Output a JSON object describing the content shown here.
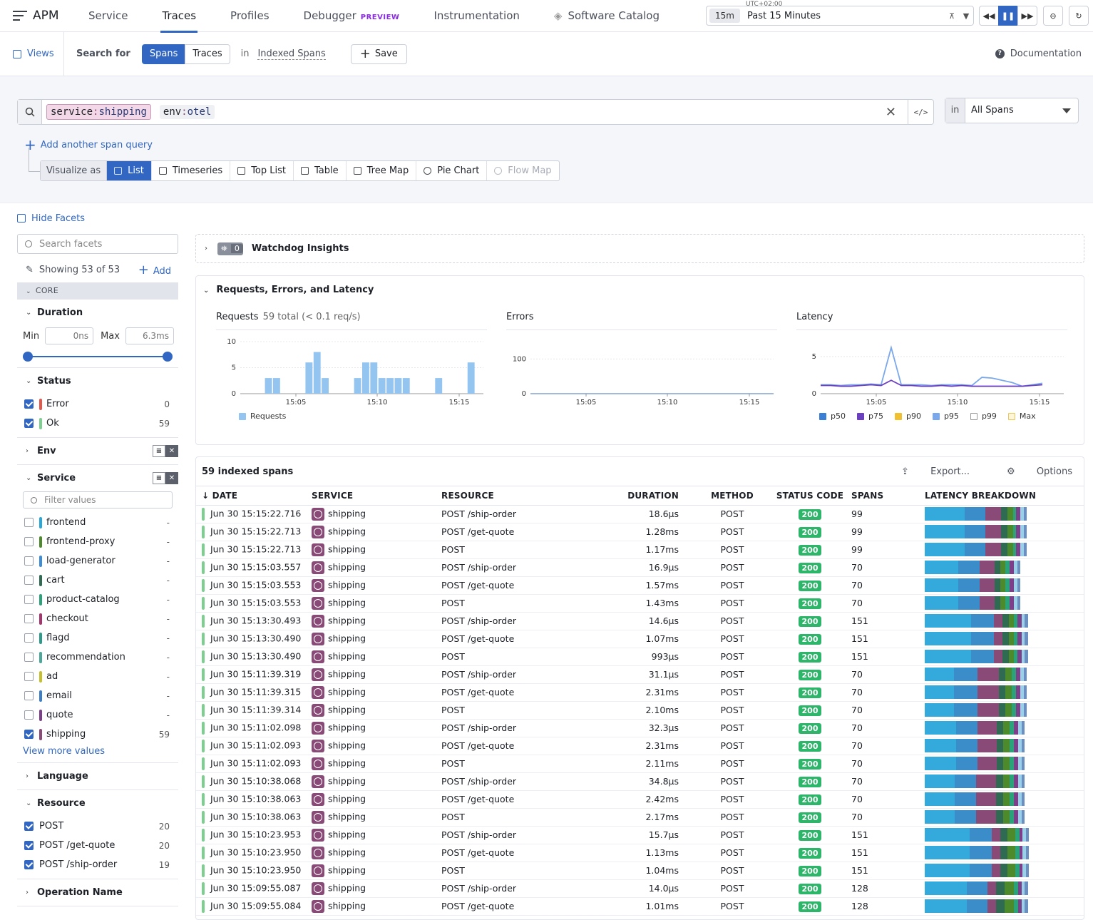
{
  "nav": {
    "brand": "APM",
    "tabs": [
      "Service",
      "Traces",
      "Profiles",
      "Debugger",
      "Instrumentation",
      "Software Catalog"
    ],
    "active_tab": "Traces",
    "debugger_badge": "PREVIEW",
    "time": {
      "tz": "UTC+02:00",
      "badge": "15m",
      "label": "Past 15 Minutes"
    }
  },
  "subbar": {
    "views": "Views",
    "search_for": "Search for",
    "spans": "Spans",
    "traces": "Traces",
    "in": "in",
    "indexed": "Indexed Spans",
    "save": "Save",
    "docs": "Documentation"
  },
  "query": {
    "pill1_key": "service",
    "pill1_val": "shipping",
    "pill2_key": "env",
    "pill2_val": "otel",
    "in": "in",
    "scope": "All Spans",
    "add_query": "Add another span query",
    "visualize_as": "Visualize as",
    "vis_options": [
      "List",
      "Timeseries",
      "Top List",
      "Table",
      "Tree Map",
      "Pie Chart",
      "Flow Map"
    ]
  },
  "facets": {
    "hide": "Hide Facets",
    "search_placeholder": "Search facets",
    "showing": "Showing 53 of 53",
    "add": "Add",
    "core": "CORE",
    "duration": {
      "title": "Duration",
      "min_label": "Min",
      "min": "0ns",
      "max_label": "Max",
      "max": "6.3ms"
    },
    "status": {
      "title": "Status",
      "items": [
        {
          "label": "Error",
          "count": "0",
          "color": "#e5574b"
        },
        {
          "label": "Ok",
          "count": "59",
          "color": "#7ccf8f"
        }
      ]
    },
    "env_title": "Env",
    "service": {
      "title": "Service",
      "filter_placeholder": "Filter values",
      "items": [
        {
          "label": "frontend",
          "count": "-",
          "color": "#26a8d8",
          "checked": false
        },
        {
          "label": "frontend-proxy",
          "count": "-",
          "color": "#4c8a2c",
          "checked": false
        },
        {
          "label": "load-generator",
          "count": "-",
          "color": "#3a8dd6",
          "checked": false
        },
        {
          "label": "cart",
          "count": "-",
          "color": "#2f6b52",
          "checked": false
        },
        {
          "label": "product-catalog",
          "count": "-",
          "color": "#2aa37a",
          "checked": false
        },
        {
          "label": "checkout",
          "count": "-",
          "color": "#a6356e",
          "checked": false
        },
        {
          "label": "flagd",
          "count": "-",
          "color": "#2b9c8a",
          "checked": false
        },
        {
          "label": "recommendation",
          "count": "-",
          "color": "#4aa89a",
          "checked": false
        },
        {
          "label": "ad",
          "count": "-",
          "color": "#c8c02a",
          "checked": false
        },
        {
          "label": "email",
          "count": "-",
          "color": "#3a7fc8",
          "checked": false
        },
        {
          "label": "quote",
          "count": "-",
          "color": "#7d3f8a",
          "checked": false
        },
        {
          "label": "shipping",
          "count": "59",
          "color": "#8a4a78",
          "checked": true
        }
      ],
      "view_more": "View more values"
    },
    "language_title": "Language",
    "resource": {
      "title": "Resource",
      "items": [
        {
          "label": "POST",
          "count": "20"
        },
        {
          "label": "POST /get-quote",
          "count": "20"
        },
        {
          "label": "POST /ship-order",
          "count": "19"
        }
      ]
    },
    "operation_title": "Operation Name"
  },
  "watchdog": {
    "count": "0",
    "title": "Watchdog Insights"
  },
  "rel": {
    "title": "Requests, Errors, and Latency",
    "requests": {
      "title": "Requests",
      "subtitle": "59 total (< 0.1 req/s)",
      "legend": "Requests",
      "color": "#94c4f0",
      "yticks": [
        "10",
        "5",
        "0"
      ],
      "xticks": [
        "15:05",
        "15:10",
        "15:15"
      ],
      "chart_data": {
        "type": "bar",
        "title": "Requests",
        "ylim": [
          0,
          10
        ],
        "values": [
          0,
          0,
          0,
          3,
          3,
          0,
          0,
          0,
          6,
          8,
          3,
          0,
          0,
          0,
          3,
          6,
          6,
          3,
          3,
          3,
          3,
          0,
          0,
          0,
          3,
          0,
          0,
          0,
          6,
          0
        ]
      }
    },
    "errors": {
      "title": "Errors",
      "yticks": [
        "100",
        "0"
      ],
      "xticks": [
        "15:05",
        "15:10",
        "15:15"
      ],
      "chart_data": {
        "type": "line",
        "title": "Errors",
        "ylim": [
          0,
          150
        ],
        "values": [
          0,
          0,
          0,
          0,
          0,
          0,
          0,
          0,
          0,
          0
        ]
      }
    },
    "latency": {
      "title": "Latency",
      "yticks": [
        "5",
        "0"
      ],
      "xticks": [
        "15:05",
        "15:10",
        "15:15"
      ],
      "legend": [
        {
          "name": "p50",
          "color": "#3a7fd6"
        },
        {
          "name": "p75",
          "color": "#6a3fc0"
        },
        {
          "name": "p90",
          "color": "#f0c030"
        },
        {
          "name": "p95",
          "color": "#7aa8ea"
        },
        {
          "name": "p99",
          "color": "#ffffff"
        },
        {
          "name": "Max",
          "color": "#fff6d8"
        }
      ],
      "chart_data": {
        "type": "line",
        "title": "Latency",
        "ylim": [
          0,
          7
        ],
        "series": [
          {
            "name": "p95",
            "values": [
              1.2,
              1.2,
              1.1,
              1.2,
              1.2,
              1.3,
              1.2,
              6.2,
              1.2,
              1.2,
              1.2,
              1.1,
              1.2,
              1.2,
              1.2,
              1.1,
              2.2,
              2.1,
              1.8,
              1.5,
              1.0,
              1.2,
              1.4
            ]
          },
          {
            "name": "p75",
            "values": [
              1.1,
              1.1,
              1.0,
              1.0,
              1.1,
              1.2,
              1.1,
              1.8,
              1.1,
              1.1,
              1.0,
              1.0,
              1.1,
              1.0,
              1.1,
              1.0,
              1.0,
              1.0,
              1.0,
              1.0,
              1.0,
              1.1,
              1.2
            ]
          }
        ]
      }
    }
  },
  "spans": {
    "title": "59 indexed spans",
    "export": "Export...",
    "options": "Options",
    "columns": [
      "DATE",
      "SERVICE",
      "RESOURCE",
      "DURATION",
      "METHOD",
      "STATUS CODE",
      "SPANS",
      "LATENCY BREAKDOWN"
    ],
    "rows": [
      [
        "Jun 30 15:15:22.716",
        "shipping",
        "POST /ship-order",
        "18.6μs",
        "POST",
        "200",
        "99"
      ],
      [
        "Jun 30 15:15:22.713",
        "shipping",
        "POST /get-quote",
        "1.28ms",
        "POST",
        "200",
        "99"
      ],
      [
        "Jun 30 15:15:22.713",
        "shipping",
        "POST",
        "1.17ms",
        "POST",
        "200",
        "99"
      ],
      [
        "Jun 30 15:15:03.557",
        "shipping",
        "POST /ship-order",
        "16.9μs",
        "POST",
        "200",
        "70"
      ],
      [
        "Jun 30 15:15:03.553",
        "shipping",
        "POST /get-quote",
        "1.57ms",
        "POST",
        "200",
        "70"
      ],
      [
        "Jun 30 15:15:03.553",
        "shipping",
        "POST",
        "1.43ms",
        "POST",
        "200",
        "70"
      ],
      [
        "Jun 30 15:13:30.493",
        "shipping",
        "POST /ship-order",
        "14.6μs",
        "POST",
        "200",
        "151"
      ],
      [
        "Jun 30 15:13:30.490",
        "shipping",
        "POST /get-quote",
        "1.07ms",
        "POST",
        "200",
        "151"
      ],
      [
        "Jun 30 15:13:30.490",
        "shipping",
        "POST",
        "993μs",
        "POST",
        "200",
        "151"
      ],
      [
        "Jun 30 15:11:39.319",
        "shipping",
        "POST /ship-order",
        "31.1μs",
        "POST",
        "200",
        "70"
      ],
      [
        "Jun 30 15:11:39.315",
        "shipping",
        "POST /get-quote",
        "2.31ms",
        "POST",
        "200",
        "70"
      ],
      [
        "Jun 30 15:11:39.314",
        "shipping",
        "POST",
        "2.10ms",
        "POST",
        "200",
        "70"
      ],
      [
        "Jun 30 15:11:02.098",
        "shipping",
        "POST /ship-order",
        "32.3μs",
        "POST",
        "200",
        "70"
      ],
      [
        "Jun 30 15:11:02.093",
        "shipping",
        "POST /get-quote",
        "2.31ms",
        "POST",
        "200",
        "70"
      ],
      [
        "Jun 30 15:11:02.093",
        "shipping",
        "POST",
        "2.11ms",
        "POST",
        "200",
        "70"
      ],
      [
        "Jun 30 15:10:38.068",
        "shipping",
        "POST /ship-order",
        "34.8μs",
        "POST",
        "200",
        "70"
      ],
      [
        "Jun 30 15:10:38.063",
        "shipping",
        "POST /get-quote",
        "2.42ms",
        "POST",
        "200",
        "70"
      ],
      [
        "Jun 30 15:10:38.063",
        "shipping",
        "POST",
        "2.17ms",
        "POST",
        "200",
        "70"
      ],
      [
        "Jun 30 15:10:23.953",
        "shipping",
        "POST /ship-order",
        "15.7μs",
        "POST",
        "200",
        "151"
      ],
      [
        "Jun 30 15:10:23.950",
        "shipping",
        "POST /get-quote",
        "1.13ms",
        "POST",
        "200",
        "151"
      ],
      [
        "Jun 30 15:10:23.950",
        "shipping",
        "POST",
        "1.04ms",
        "POST",
        "200",
        "151"
      ],
      [
        "Jun 30 15:09:55.087",
        "shipping",
        "POST /ship-order",
        "14.0μs",
        "POST",
        "200",
        "128"
      ],
      [
        "Jun 30 15:09:55.084",
        "shipping",
        "POST /get-quote",
        "1.01ms",
        "POST",
        "200",
        "128"
      ]
    ],
    "breakdown_colors": [
      "#33a9dc",
      "#3a8dc8",
      "#8a4a78",
      "#2f6b52",
      "#4c8a2c",
      "#2aa37a",
      "#7d3f8a",
      "#9ad0e8",
      "#6a8fc0"
    ]
  }
}
